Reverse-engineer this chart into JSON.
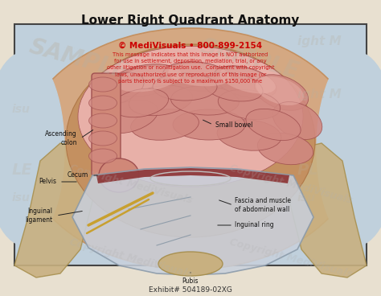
{
  "title": "Lower Right Quadrant Anatomy",
  "title_fontsize": 11,
  "title_fontweight": "bold",
  "copyright_line1": "© MediVisuals • 800-899-2154",
  "copyright_line2": "This message indicates that this image is NOT authorized\nfor use in settlement, deposition, mediation, trial, or any\nother litigation or nonlitigation use.  Consistent with copyright\nlaws, unauthorized use or reproduction of this image (or\nparts thereof) is subject to a maximum $150,000 fine",
  "exhibit_text": "Exhibit# 504189-02XG",
  "bg_color": "#e8e0d0",
  "illustration_bg": "#c0d0dc",
  "skin_light": "#d4a882",
  "skin_mid": "#c49060",
  "skin_dark": "#b07848",
  "bowel_light": "#e8b0a8",
  "bowel_mid": "#d08880",
  "bowel_dark": "#b86860",
  "bowel_edge": "#a05050",
  "colon_color": "#d08878",
  "fascia_color": "#c8d0dc",
  "fascia_edge": "#8898a8",
  "bone_color": "#c8b080",
  "bone_edge": "#a89050",
  "muscle_red": "#882828",
  "ligament_yellow": "#c8a030",
  "fig_width": 4.74,
  "fig_height": 3.68,
  "dpi": 100
}
